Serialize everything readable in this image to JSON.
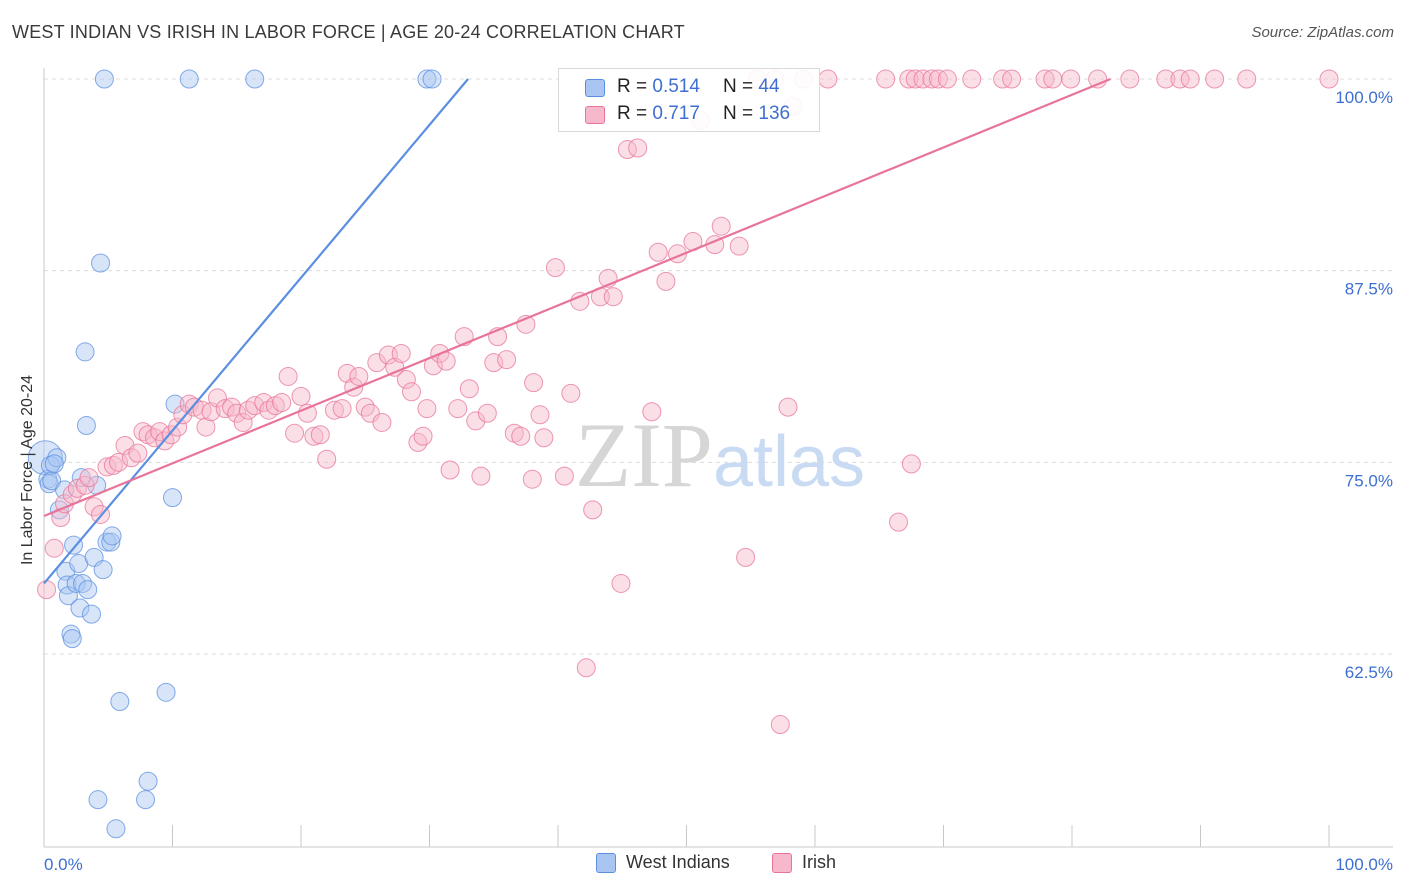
{
  "header": {
    "title": "WEST INDIAN VS IRISH IN LABOR FORCE | AGE 20-24 CORRELATION CHART",
    "source": "Source: ZipAtlas.com"
  },
  "watermark": "ZIPatlas",
  "legend_top": {
    "rows": [
      {
        "r_label": "R =",
        "r_value": "0.514",
        "n_label": "N =",
        "n_value": "44",
        "color": "#a9c6f2"
      },
      {
        "r_label": "R =",
        "r_value": "0.717",
        "n_label": "N =",
        "n_value": "136",
        "color": "#f6b8ca"
      }
    ]
  },
  "legend_bottom": {
    "items": [
      {
        "label": "West Indians",
        "color": "#a9c6f2"
      },
      {
        "label": "Irish",
        "color": "#f6b8ca"
      }
    ]
  },
  "chart_data": {
    "type": "scatter",
    "title": "WEST INDIAN VS IRISH IN LABOR FORCE | AGE 20-24 CORRELATION CHART",
    "xlabel": "",
    "ylabel": "In Labor Force | Age 20-24",
    "xlim": [
      0,
      100
    ],
    "ylim": [
      51,
      101.3
    ],
    "x_tick_labels": [
      {
        "value": 0,
        "label": "0.0%"
      },
      {
        "value": 100,
        "label": "100.0%"
      }
    ],
    "y_tick_labels": [
      {
        "value": 62.5,
        "label": "62.5%"
      },
      {
        "value": 75.0,
        "label": "75.0%"
      },
      {
        "value": 87.5,
        "label": "87.5%"
      },
      {
        "value": 100.0,
        "label": "100.0%"
      }
    ],
    "grid": true,
    "series": [
      {
        "name": "West Indians",
        "color": "#5b8fe0",
        "fill": "#a9c6f2",
        "R": 0.514,
        "N": 44,
        "trend": {
          "x": [
            0.0,
            33.0
          ],
          "y": [
            67.1,
            100.0
          ]
        },
        "points": [
          [
            0.1,
            75.3
          ],
          [
            0.3,
            73.9
          ],
          [
            0.4,
            73.6
          ],
          [
            0.5,
            74.8
          ],
          [
            0.6,
            73.8
          ],
          [
            1.0,
            75.3
          ],
          [
            1.2,
            71.9
          ],
          [
            1.6,
            73.2
          ],
          [
            1.7,
            67.9
          ],
          [
            1.8,
            67.0
          ],
          [
            1.9,
            66.3
          ],
          [
            2.1,
            63.8
          ],
          [
            2.2,
            63.5
          ],
          [
            2.3,
            69.6
          ],
          [
            2.5,
            67.1
          ],
          [
            2.7,
            68.4
          ],
          [
            2.8,
            65.5
          ],
          [
            3.0,
            67.1
          ],
          [
            3.2,
            82.2
          ],
          [
            3.3,
            77.4
          ],
          [
            3.4,
            66.7
          ],
          [
            3.7,
            65.1
          ],
          [
            3.9,
            68.8
          ],
          [
            4.1,
            73.5
          ],
          [
            4.2,
            53.0
          ],
          [
            4.4,
            88.0
          ],
          [
            4.6,
            68.0
          ],
          [
            4.7,
            100.0
          ],
          [
            4.9,
            69.8
          ],
          [
            5.2,
            69.8
          ],
          [
            5.3,
            70.2
          ],
          [
            5.6,
            51.1
          ],
          [
            5.9,
            59.4
          ],
          [
            7.9,
            53.0
          ],
          [
            8.1,
            54.2
          ],
          [
            9.5,
            60.0
          ],
          [
            10.0,
            72.7
          ],
          [
            10.2,
            78.8
          ],
          [
            11.3,
            100.0
          ],
          [
            16.4,
            100.0
          ],
          [
            29.8,
            100.0
          ],
          [
            30.2,
            100.0
          ],
          [
            0.8,
            74.9
          ],
          [
            2.9,
            74.0
          ]
        ]
      },
      {
        "name": "Irish",
        "color": "#e8749a",
        "fill": "#f6b8ca",
        "R": 0.717,
        "N": 136,
        "trend": {
          "x": [
            0.0,
            83.0
          ],
          "y": [
            71.5,
            100.0
          ]
        },
        "points": [
          [
            0.2,
            66.7
          ],
          [
            0.8,
            69.4
          ],
          [
            1.3,
            71.4
          ],
          [
            1.6,
            72.3
          ],
          [
            2.2,
            72.9
          ],
          [
            2.6,
            73.3
          ],
          [
            3.2,
            73.5
          ],
          [
            3.5,
            74.0
          ],
          [
            3.9,
            72.1
          ],
          [
            4.4,
            71.6
          ],
          [
            4.9,
            74.7
          ],
          [
            5.4,
            74.8
          ],
          [
            5.8,
            75.0
          ],
          [
            6.3,
            76.1
          ],
          [
            6.8,
            75.3
          ],
          [
            7.3,
            75.6
          ],
          [
            7.7,
            77.0
          ],
          [
            8.1,
            76.8
          ],
          [
            8.6,
            76.6
          ],
          [
            9.0,
            77.0
          ],
          [
            9.4,
            76.4
          ],
          [
            9.9,
            76.8
          ],
          [
            10.4,
            77.3
          ],
          [
            10.8,
            78.1
          ],
          [
            11.3,
            78.8
          ],
          [
            11.7,
            78.6
          ],
          [
            12.3,
            78.4
          ],
          [
            12.6,
            77.3
          ],
          [
            13.0,
            78.3
          ],
          [
            13.5,
            79.2
          ],
          [
            14.1,
            78.5
          ],
          [
            14.6,
            78.6
          ],
          [
            15.0,
            78.2
          ],
          [
            15.5,
            77.6
          ],
          [
            15.9,
            78.4
          ],
          [
            16.4,
            78.7
          ],
          [
            17.1,
            78.9
          ],
          [
            17.5,
            78.4
          ],
          [
            18.0,
            78.7
          ],
          [
            18.5,
            78.9
          ],
          [
            19.0,
            80.6
          ],
          [
            19.5,
            76.9
          ],
          [
            20.0,
            79.3
          ],
          [
            20.5,
            78.2
          ],
          [
            21.0,
            76.7
          ],
          [
            21.5,
            76.8
          ],
          [
            22.0,
            75.2
          ],
          [
            22.6,
            78.4
          ],
          [
            23.2,
            78.5
          ],
          [
            23.6,
            80.8
          ],
          [
            24.1,
            79.9
          ],
          [
            24.5,
            80.6
          ],
          [
            25.0,
            78.6
          ],
          [
            25.4,
            78.2
          ],
          [
            25.9,
            81.5
          ],
          [
            26.3,
            77.6
          ],
          [
            26.8,
            82.0
          ],
          [
            27.3,
            81.2
          ],
          [
            27.8,
            82.1
          ],
          [
            28.2,
            80.4
          ],
          [
            28.6,
            79.6
          ],
          [
            29.1,
            76.3
          ],
          [
            29.5,
            76.7
          ],
          [
            29.8,
            78.5
          ],
          [
            30.3,
            81.3
          ],
          [
            30.8,
            82.1
          ],
          [
            31.3,
            81.6
          ],
          [
            31.6,
            74.5
          ],
          [
            32.2,
            78.5
          ],
          [
            32.7,
            83.2
          ],
          [
            33.1,
            79.8
          ],
          [
            33.6,
            77.7
          ],
          [
            34.0,
            74.1
          ],
          [
            34.5,
            78.2
          ],
          [
            35.0,
            81.5
          ],
          [
            35.3,
            83.2
          ],
          [
            36.0,
            81.7
          ],
          [
            36.6,
            76.9
          ],
          [
            37.1,
            76.7
          ],
          [
            37.5,
            84.0
          ],
          [
            38.1,
            80.2
          ],
          [
            38.6,
            78.1
          ],
          [
            38.9,
            76.6
          ],
          [
            39.8,
            87.7
          ],
          [
            40.5,
            74.1
          ],
          [
            41.0,
            79.5
          ],
          [
            41.7,
            85.5
          ],
          [
            42.2,
            61.6
          ],
          [
            42.7,
            71.9
          ],
          [
            43.3,
            85.8
          ],
          [
            43.9,
            87.0
          ],
          [
            44.3,
            85.8
          ],
          [
            44.9,
            67.1
          ],
          [
            45.4,
            95.4
          ],
          [
            46.2,
            95.5
          ],
          [
            47.3,
            78.3
          ],
          [
            47.8,
            88.7
          ],
          [
            48.4,
            86.8
          ],
          [
            49.3,
            88.6
          ],
          [
            50.5,
            89.4
          ],
          [
            51.1,
            97.3
          ],
          [
            52.2,
            89.2
          ],
          [
            52.7,
            90.4
          ],
          [
            54.1,
            89.1
          ],
          [
            54.6,
            68.8
          ],
          [
            55.5,
            100.0
          ],
          [
            56.9,
            100.0
          ],
          [
            57.3,
            57.9
          ],
          [
            57.9,
            78.6
          ],
          [
            58.3,
            98.2
          ],
          [
            59.1,
            100.0
          ],
          [
            61.0,
            100.0
          ],
          [
            65.5,
            100.0
          ],
          [
            67.3,
            100.0
          ],
          [
            67.8,
            100.0
          ],
          [
            68.4,
            100.0
          ],
          [
            69.1,
            100.0
          ],
          [
            69.6,
            100.0
          ],
          [
            70.3,
            100.0
          ],
          [
            72.2,
            100.0
          ],
          [
            74.6,
            100.0
          ],
          [
            75.3,
            100.0
          ],
          [
            77.9,
            100.0
          ],
          [
            78.5,
            100.0
          ],
          [
            79.9,
            100.0
          ],
          [
            82.0,
            100.0
          ],
          [
            84.5,
            100.0
          ],
          [
            87.3,
            100.0
          ],
          [
            88.4,
            100.0
          ],
          [
            89.2,
            100.0
          ],
          [
            91.1,
            100.0
          ],
          [
            93.6,
            100.0
          ],
          [
            100.0,
            100.0
          ],
          [
            66.5,
            71.1
          ],
          [
            67.5,
            74.9
          ],
          [
            38.0,
            73.9
          ]
        ]
      }
    ]
  }
}
